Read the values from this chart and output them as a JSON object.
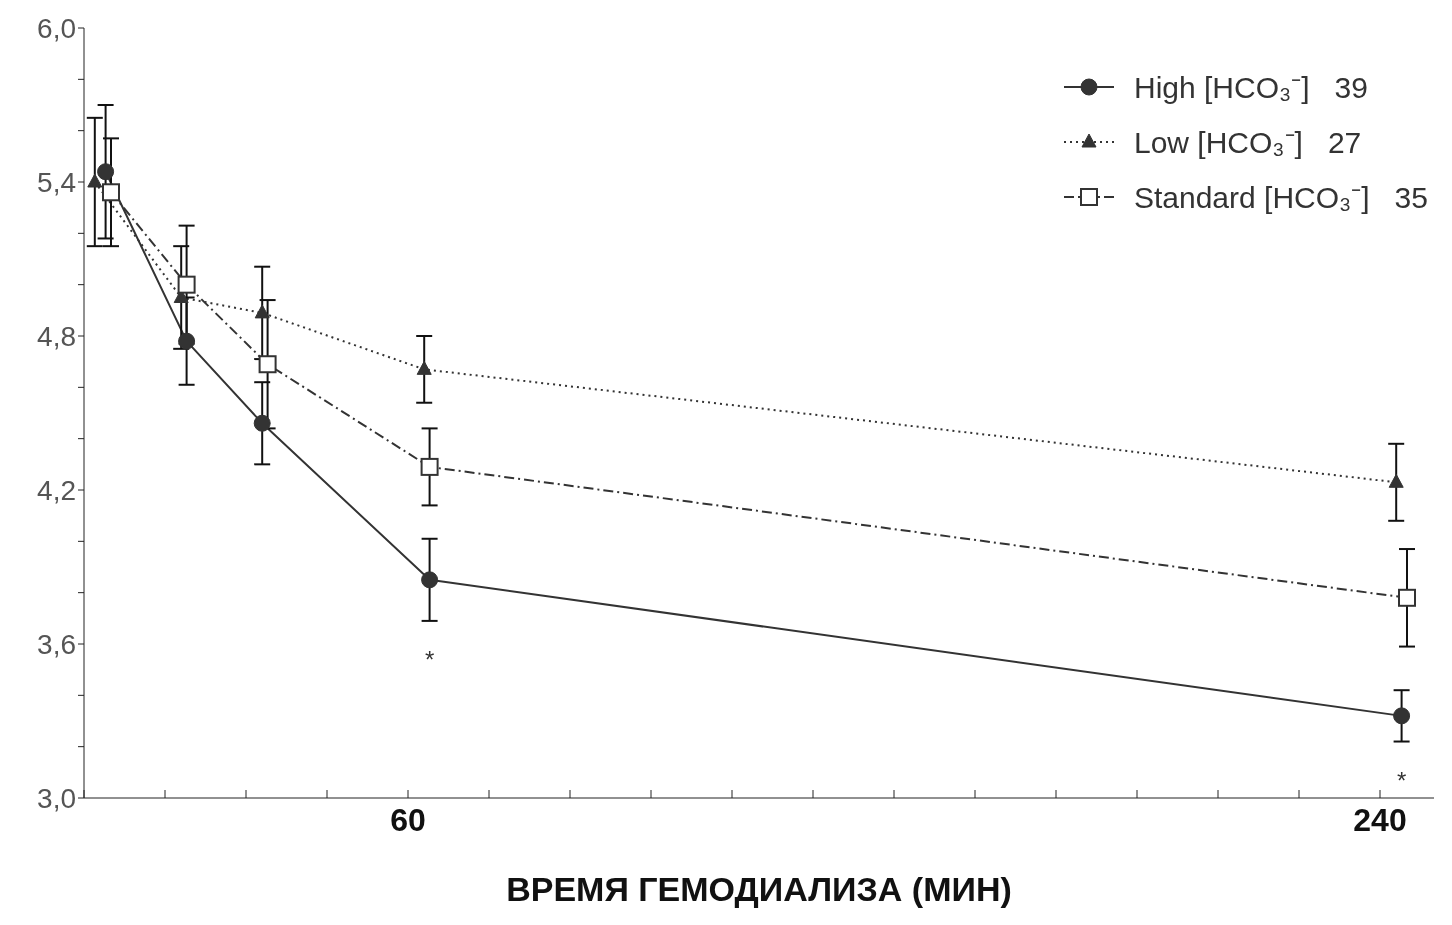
{
  "chart_data": {
    "type": "line",
    "xlabel": "ВРЕМЯ ГЕМОДИАЛИЗА (МИН)",
    "xlim": [
      0,
      250
    ],
    "xticks": [
      {
        "value": 0,
        "label": null
      },
      {
        "value": 15,
        "label": null
      },
      {
        "value": 30,
        "label": null
      },
      {
        "value": 45,
        "label": null
      },
      60,
      {
        "value": 75,
        "label": null
      },
      {
        "value": 90,
        "label": null
      },
      {
        "value": 105,
        "label": null
      },
      {
        "value": 120,
        "label": null
      },
      {
        "value": 135,
        "label": null
      },
      {
        "value": 150,
        "label": null
      },
      {
        "value": 165,
        "label": null
      },
      {
        "value": 180,
        "label": null
      },
      {
        "value": 195,
        "label": null
      },
      {
        "value": 210,
        "label": null
      },
      {
        "value": 225,
        "label": null
      },
      240
    ],
    "ylim": [
      3,
      6
    ],
    "yticks": [
      {
        "value": 3,
        "label": "3,0"
      },
      {
        "value": 3.2,
        "label": null
      },
      {
        "value": 3.4,
        "label": null
      },
      {
        "value": 3.6,
        "label": "3,6"
      },
      {
        "value": 3.8,
        "label": null
      },
      {
        "value": 4,
        "label": null
      },
      {
        "value": 4.2,
        "label": "4,2"
      },
      {
        "value": 4.4,
        "label": null
      },
      {
        "value": 4.6,
        "label": null
      },
      {
        "value": 4.8,
        "label": "4,8"
      },
      {
        "value": 5,
        "label": null
      },
      {
        "value": 5.2,
        "label": null
      },
      {
        "value": 5.4,
        "label": "5,4"
      },
      {
        "value": 5.6,
        "label": null
      },
      {
        "value": 5.8,
        "label": null
      },
      {
        "value": 6,
        "label": "6,0"
      }
    ],
    "grid": false,
    "legend": "top right",
    "series": [
      {
        "name": "High [HCO₃⁻]   39",
        "color": "#333333",
        "marker": "circle",
        "line_style": "solid",
        "x": [
          4,
          19,
          33,
          64,
          244
        ],
        "values": [
          5.44,
          4.78,
          4.46,
          3.85,
          3.32
        ],
        "errors": [
          0.26,
          0.17,
          0.16,
          0.16,
          0.1
        ]
      },
      {
        "name": "Low [HCO₃⁻]   27",
        "color": "#333333",
        "marker": "triangle",
        "line_style": "dotted",
        "x": [
          2,
          18,
          33,
          63,
          243
        ],
        "values": [
          5.4,
          4.95,
          4.89,
          4.67,
          4.23
        ],
        "errors": [
          0.25,
          0.2,
          0.18,
          0.13,
          0.15
        ]
      },
      {
        "name": "Standard [HCO₃⁻]   35",
        "color": "#333333",
        "marker": "square",
        "line_style": "dashed",
        "x": [
          5,
          19,
          34,
          64,
          245
        ],
        "values": [
          5.36,
          5.0,
          4.69,
          4.29,
          3.78
        ],
        "errors": [
          0.21,
          0.23,
          0.25,
          0.15,
          0.19
        ]
      }
    ],
    "annotations": [
      "*",
      "*"
    ]
  }
}
